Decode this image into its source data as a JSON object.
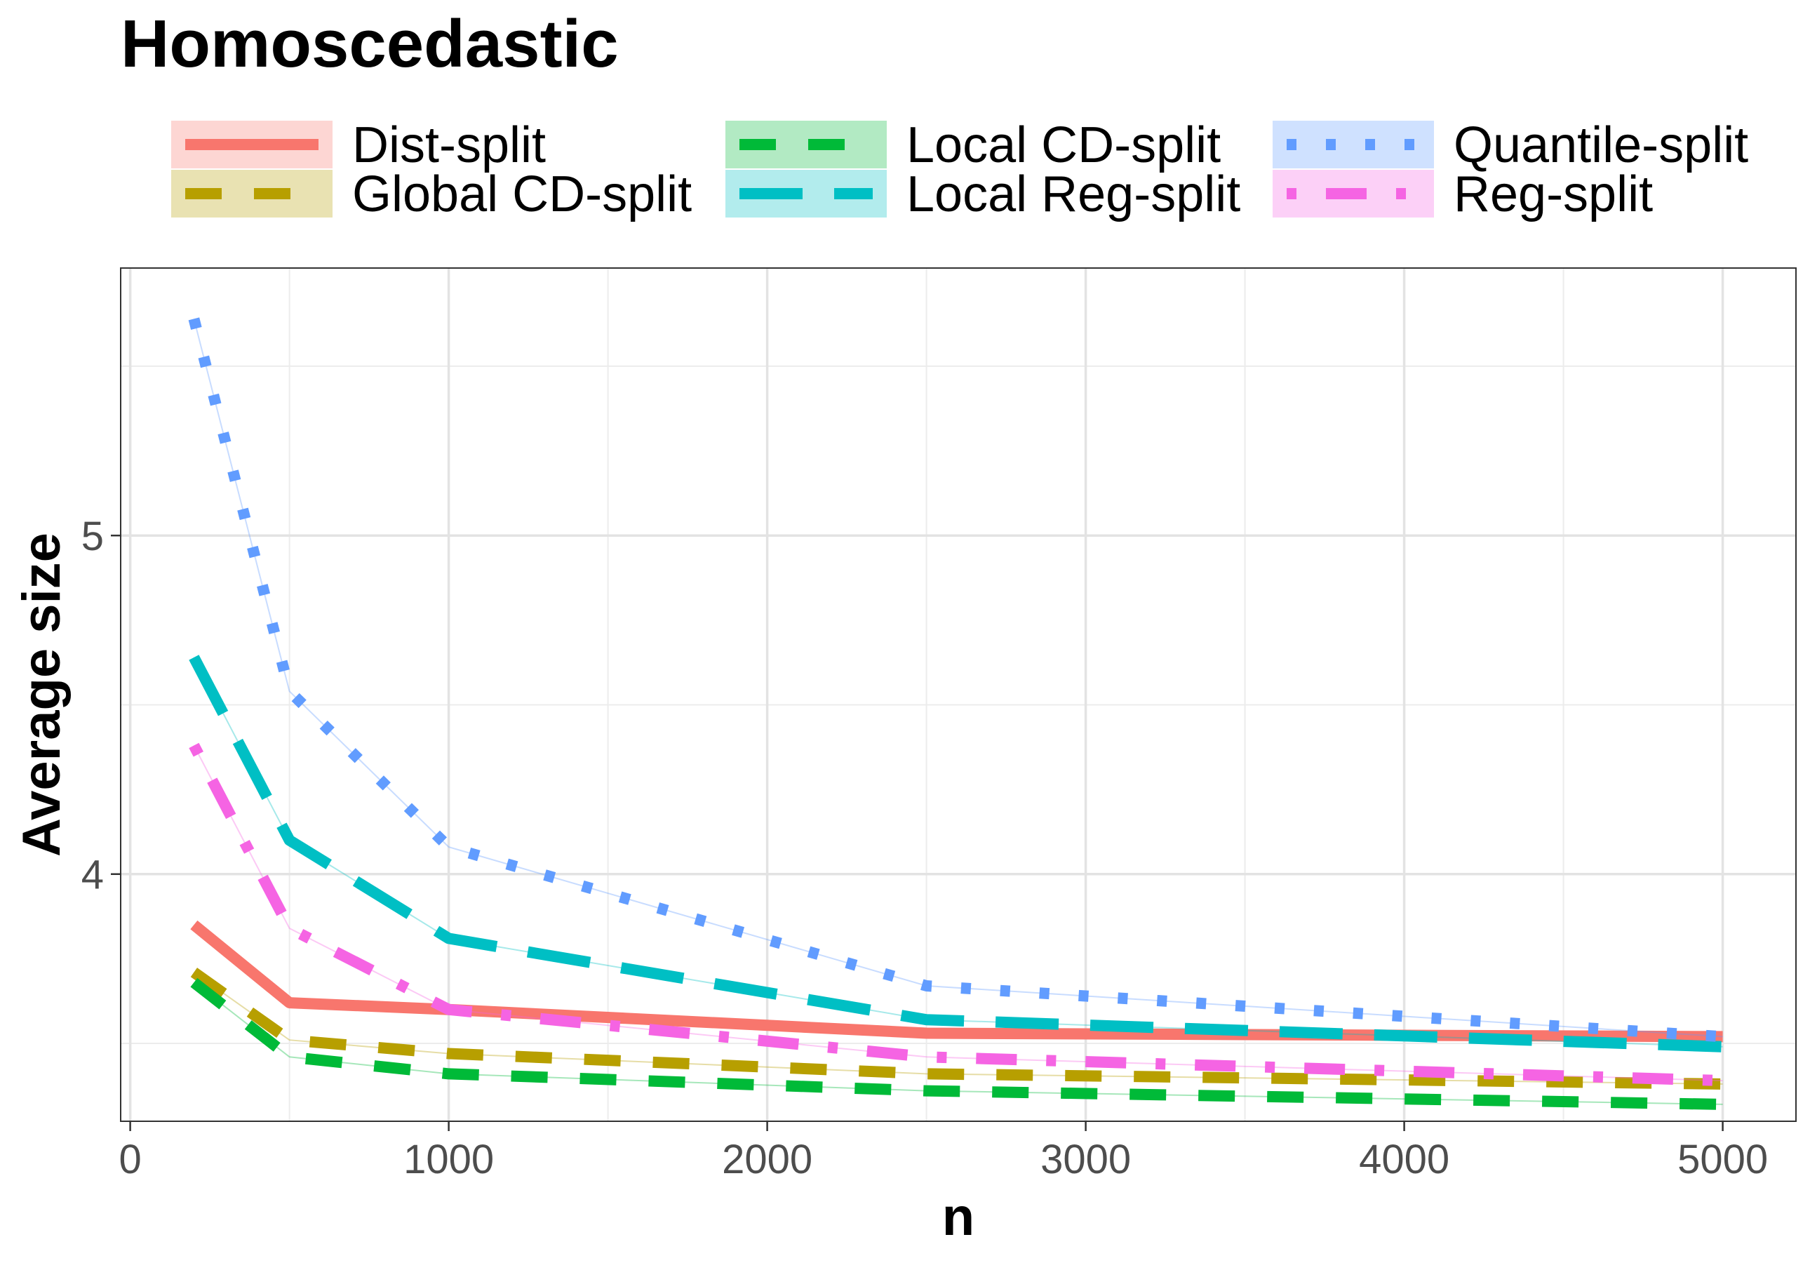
{
  "chart_data": {
    "type": "line",
    "title": "Homoscedastic",
    "xlabel": "n",
    "ylabel": "Average size",
    "xlim": [
      -30,
      5230
    ],
    "ylim": [
      3.27,
      5.79
    ],
    "x_ticks": [
      0,
      1000,
      2000,
      3000,
      4000,
      5000
    ],
    "x_tick_labels": [
      "0",
      "1000",
      "2000",
      "3000",
      "4000",
      "5000"
    ],
    "y_ticks": [
      4,
      5
    ],
    "y_tick_labels": [
      "4",
      "5"
    ],
    "grid": true,
    "legend_position": "top",
    "x": [
      200,
      500,
      1000,
      2500,
      5000
    ],
    "series": [
      {
        "name": "Dist-split",
        "color": "#F8766D",
        "style": "solid",
        "values": [
          3.85,
          3.62,
          3.6,
          3.53,
          3.52
        ]
      },
      {
        "name": "Global CD-split",
        "color": "#B79F00",
        "style": "dashed",
        "values": [
          3.71,
          3.51,
          3.47,
          3.41,
          3.38
        ]
      },
      {
        "name": "Local CD-split",
        "color": "#00BA38",
        "style": "dashed",
        "values": [
          3.68,
          3.46,
          3.41,
          3.36,
          3.32
        ]
      },
      {
        "name": "Local Reg-split",
        "color": "#00BFC4",
        "style": "longdash",
        "values": [
          4.64,
          4.1,
          3.81,
          3.57,
          3.49
        ]
      },
      {
        "name": "Quantile-split",
        "color": "#619CFF",
        "style": "dotted",
        "values": [
          5.64,
          4.54,
          4.08,
          3.67,
          3.52
        ]
      },
      {
        "name": "Reg-split",
        "color": "#F564E3",
        "style": "dotdash",
        "values": [
          4.38,
          3.84,
          3.6,
          3.46,
          3.39
        ]
      }
    ]
  }
}
